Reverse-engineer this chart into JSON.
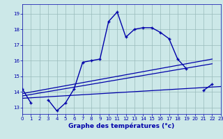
{
  "xlabel": "Graphe des températures (°c)",
  "background_color": "#cce8e8",
  "grid_color": "#99bbbb",
  "line_color": "#0000aa",
  "hours": [
    0,
    1,
    2,
    3,
    4,
    5,
    6,
    7,
    8,
    9,
    10,
    11,
    12,
    13,
    14,
    15,
    16,
    17,
    18,
    19,
    20,
    21,
    22,
    23
  ],
  "temp_main": [
    14.2,
    13.3,
    null,
    13.5,
    12.8,
    13.3,
    14.2,
    15.9,
    16.0,
    16.1,
    18.5,
    19.1,
    17.5,
    18.0,
    18.1,
    18.1,
    17.8,
    17.4,
    16.1,
    15.5,
    null,
    14.1,
    14.5,
    null
  ],
  "trend1_x": [
    0,
    22
  ],
  "trend1_y": [
    13.9,
    16.1
  ],
  "trend2_x": [
    0,
    22
  ],
  "trend2_y": [
    13.75,
    15.8
  ],
  "trend3_x": [
    0,
    23
  ],
  "trend3_y": [
    13.6,
    14.35
  ],
  "ylim": [
    12.6,
    19.6
  ],
  "xlim": [
    0,
    23
  ],
  "yticks": [
    13,
    14,
    15,
    16,
    17,
    18,
    19
  ],
  "xticks": [
    0,
    1,
    2,
    3,
    4,
    5,
    6,
    7,
    8,
    9,
    10,
    11,
    12,
    13,
    14,
    15,
    16,
    17,
    18,
    19,
    20,
    21,
    22,
    23
  ]
}
